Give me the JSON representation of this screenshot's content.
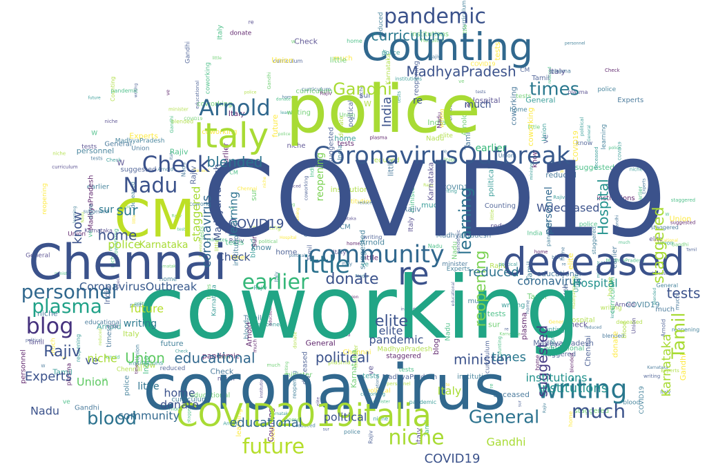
{
  "words": [
    {
      "text": "COVID19",
      "color": "#3b528b"
    },
    {
      "text": "coworking",
      "color": "#21a585"
    },
    {
      "text": "coronavirus",
      "color": "#31688e"
    },
    {
      "text": "police",
      "color": "#a8db34"
    },
    {
      "text": "Chennai",
      "color": "#3b528b"
    },
    {
      "text": "deceased",
      "color": "#3b528b"
    },
    {
      "text": "Counting",
      "color": "#31688e"
    },
    {
      "text": "COVID2019italia",
      "color": "#a8db34"
    },
    {
      "text": "CoronavirusOutbreak",
      "color": "#38598c"
    },
    {
      "text": "CM",
      "color": "#bddf26"
    },
    {
      "text": "Italy",
      "color": "#a8db34"
    },
    {
      "text": "writing",
      "color": "#2a788e"
    },
    {
      "text": "community",
      "color": "#31688e"
    },
    {
      "text": "little",
      "color": "#2c728e"
    },
    {
      "text": "pandemic",
      "color": "#3b528b"
    },
    {
      "text": "Arnold",
      "color": "#31688e"
    },
    {
      "text": "re",
      "color": "#3b528b"
    },
    {
      "text": "personnel",
      "color": "#31688e"
    },
    {
      "text": "blog",
      "color": "#46327e"
    },
    {
      "text": "Check",
      "color": "#3b528b"
    },
    {
      "text": "Nadu",
      "color": "#3b528b"
    },
    {
      "text": "earlier",
      "color": "#35b779"
    },
    {
      "text": "plasma",
      "color": "#1fa187"
    },
    {
      "text": "future",
      "color": "#b5de2b"
    },
    {
      "text": "much",
      "color": "#3b528b"
    },
    {
      "text": "niche",
      "color": "#a8db34"
    },
    {
      "text": "blood",
      "color": "#2c728e"
    },
    {
      "text": "General",
      "color": "#2c728e"
    },
    {
      "text": "Tamil",
      "color": "#a8db34"
    },
    {
      "text": "staggered",
      "color": "#a8db34"
    },
    {
      "text": "Hospital",
      "color": "#21918c"
    },
    {
      "text": "suggested",
      "color": "#443a83"
    },
    {
      "text": "times",
      "color": "#2a788e"
    },
    {
      "text": "Gandhi",
      "color": "#a8db34"
    },
    {
      "text": "MadhyaPradesh",
      "color": "#3b528b"
    },
    {
      "text": "Rajiv",
      "color": "#3b528b"
    },
    {
      "text": "donate",
      "color": "#3b528b"
    },
    {
      "text": "elite",
      "color": "#3b528b"
    },
    {
      "text": "curriculum",
      "color": "#2a788e"
    },
    {
      "text": "educational",
      "color": "#31688e"
    },
    {
      "text": "Union",
      "color": "#5ec962"
    },
    {
      "text": "Experts",
      "color": "#3b528b"
    },
    {
      "text": "minister",
      "color": "#3b528b"
    },
    {
      "text": "political",
      "color": "#3b528b"
    },
    {
      "text": "institutions",
      "color": "#21918c"
    },
    {
      "text": "learning",
      "color": "#2c728e"
    },
    {
      "text": "reopening",
      "color": "#7ad151"
    },
    {
      "text": "India",
      "color": "#3b528b"
    },
    {
      "text": "home",
      "color": "#3b528b"
    },
    {
      "text": "Karnataka",
      "color": "#a8db34"
    },
    {
      "text": "blended",
      "color": "#2c728e"
    },
    {
      "text": "tests",
      "color": "#3b528b"
    },
    {
      "text": "sur",
      "color": "#2a788e"
    },
    {
      "text": "know",
      "color": "#3b528b"
    },
    {
      "text": "reduced",
      "color": "#2c728e"
    },
    {
      "text": "ve",
      "color": "#3b528b"
    },
    {
      "text": "W",
      "color": "#3b528b"
    }
  ]
}
